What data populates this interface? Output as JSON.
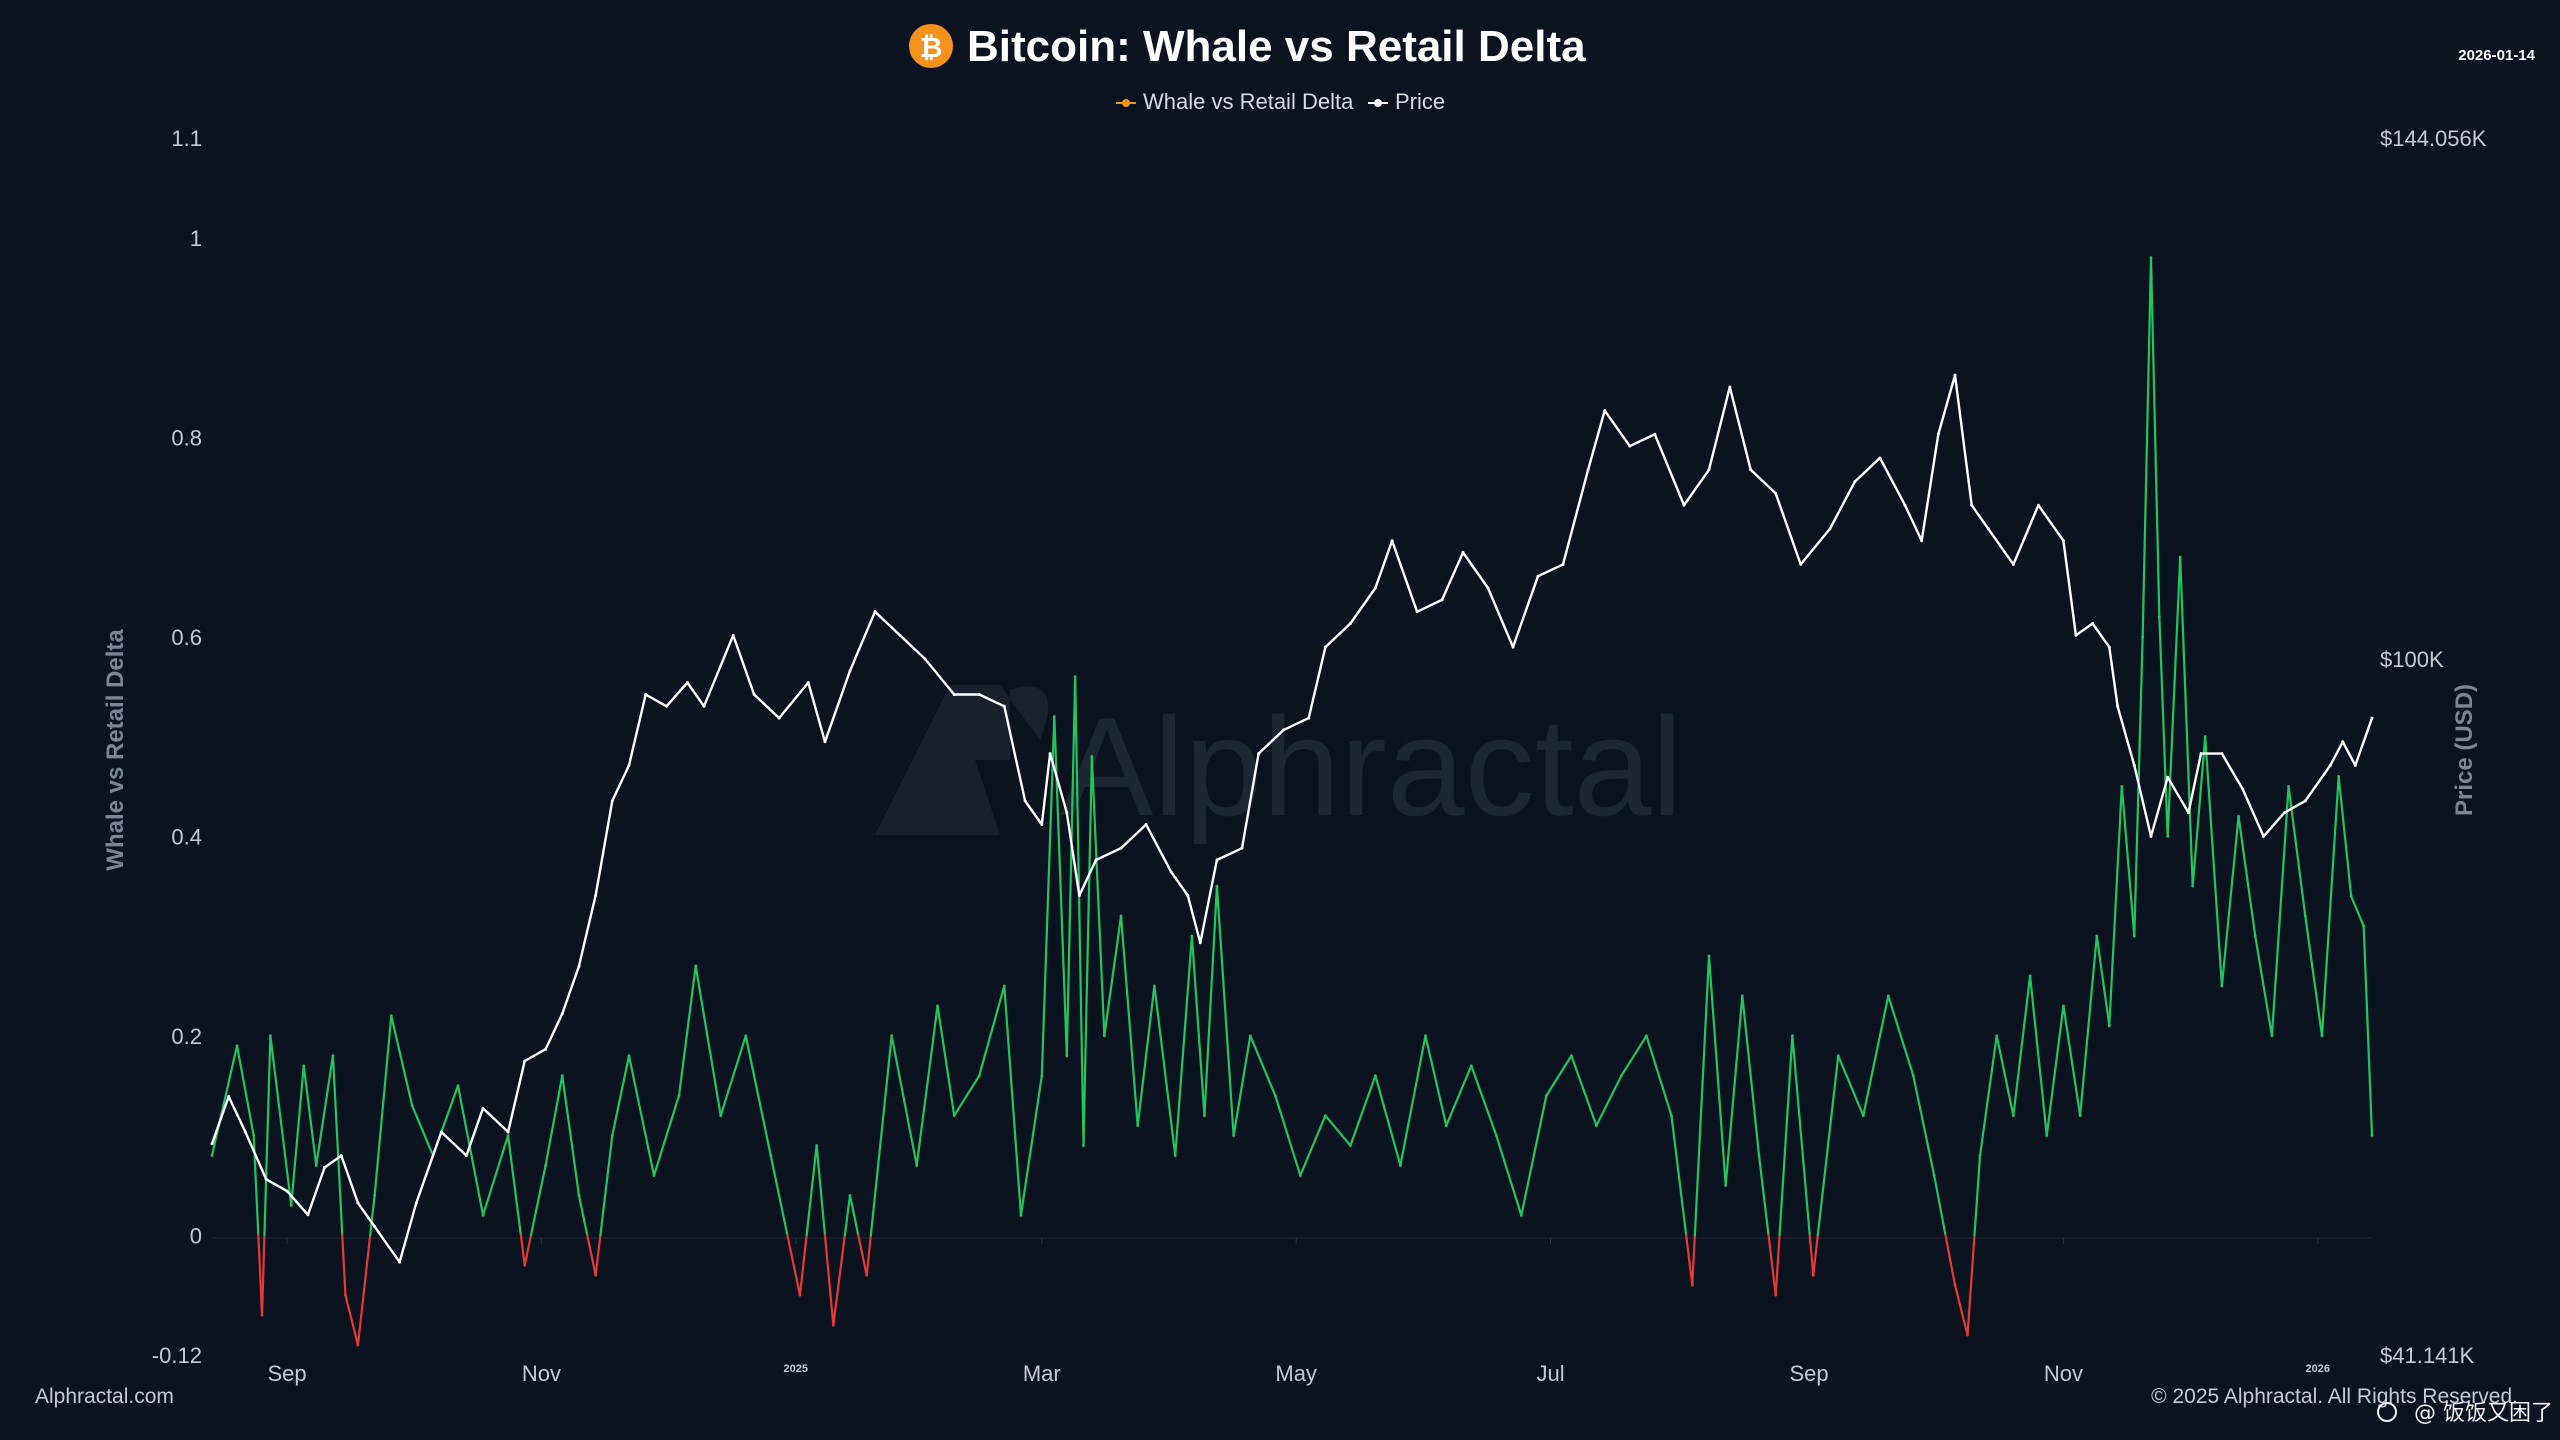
{
  "header": {
    "title": "Bitcoin: Whale vs Retail Delta",
    "date": "2026-01-14",
    "icon": "bitcoin-logo-icon"
  },
  "legend": {
    "items": [
      {
        "label": "Whale vs Retail Delta",
        "color": "#f5921b"
      },
      {
        "label": "Price",
        "color": "#ffffff"
      }
    ]
  },
  "colors": {
    "background": "#0b1320",
    "positive_delta": "#22c55e",
    "negative_delta": "#e53935",
    "price_line": "#ffffff",
    "bitcoin_orange": "#f5921b"
  },
  "watermark": "Alphractal",
  "footer": {
    "left": "Alphractal.com",
    "right": "© 2025 Alphractal. All Rights Reserved.",
    "weibo": "@ 饭饭又困了"
  },
  "chart_data": {
    "type": "line",
    "title": "Bitcoin: Whale vs Retail Delta",
    "date_range": [
      "2024-08-14",
      "2026-01-14"
    ],
    "x_tick_labels": [
      "Sep",
      "Nov",
      "2025",
      "Mar",
      "May",
      "Jul",
      "Sep",
      "Nov",
      "2026"
    ],
    "left_axis": {
      "label": "Whale vs Retail Delta",
      "ylim": [
        -0.12,
        1.1
      ],
      "tick_labels": [
        "1.1",
        "1",
        "0.8",
        "0.6",
        "0.4",
        "0.2",
        "0",
        "-0.12"
      ]
    },
    "right_axis": {
      "label": "Price (USD)",
      "ylim": [
        41141,
        144056
      ],
      "tick_labels": [
        "$144.056K",
        "$100K",
        "$41.141K"
      ]
    },
    "grid": false,
    "legend_position": "top-center",
    "series": [
      {
        "name": "Whale vs Retail Delta",
        "axis": "left",
        "style": "green above 0, red below 0",
        "points": [
          [
            "2024-08-14",
            0.08
          ],
          [
            "2024-08-20",
            0.19
          ],
          [
            "2024-08-24",
            0.1
          ],
          [
            "2024-08-26",
            -0.08
          ],
          [
            "2024-08-28",
            0.2
          ],
          [
            "2024-09-02",
            0.03
          ],
          [
            "2024-09-05",
            0.17
          ],
          [
            "2024-09-08",
            0.07
          ],
          [
            "2024-09-12",
            0.18
          ],
          [
            "2024-09-15",
            -0.06
          ],
          [
            "2024-09-18",
            -0.11
          ],
          [
            "2024-09-22",
            0.04
          ],
          [
            "2024-09-26",
            0.22
          ],
          [
            "2024-10-01",
            0.13
          ],
          [
            "2024-10-06",
            0.08
          ],
          [
            "2024-10-12",
            0.15
          ],
          [
            "2024-10-18",
            0.02
          ],
          [
            "2024-10-24",
            0.1
          ],
          [
            "2024-10-28",
            -0.03
          ],
          [
            "2024-11-02",
            0.07
          ],
          [
            "2024-11-06",
            0.16
          ],
          [
            "2024-11-10",
            0.04
          ],
          [
            "2024-11-14",
            -0.04
          ],
          [
            "2024-11-18",
            0.1
          ],
          [
            "2024-11-22",
            0.18
          ],
          [
            "2024-11-28",
            0.06
          ],
          [
            "2024-12-04",
            0.14
          ],
          [
            "2024-12-08",
            0.27
          ],
          [
            "2024-12-14",
            0.12
          ],
          [
            "2024-12-20",
            0.2
          ],
          [
            "2024-12-26",
            0.08
          ],
          [
            "2025-01-02",
            -0.06
          ],
          [
            "2025-01-06",
            0.09
          ],
          [
            "2025-01-10",
            -0.09
          ],
          [
            "2025-01-14",
            0.04
          ],
          [
            "2025-01-18",
            -0.04
          ],
          [
            "2025-01-24",
            0.2
          ],
          [
            "2025-01-30",
            0.07
          ],
          [
            "2025-02-04",
            0.23
          ],
          [
            "2025-02-08",
            0.12
          ],
          [
            "2025-02-14",
            0.16
          ],
          [
            "2025-02-20",
            0.25
          ],
          [
            "2025-02-24",
            0.02
          ],
          [
            "2025-03-01",
            0.16
          ],
          [
            "2025-03-04",
            0.52
          ],
          [
            "2025-03-07",
            0.18
          ],
          [
            "2025-03-09",
            0.56
          ],
          [
            "2025-03-11",
            0.09
          ],
          [
            "2025-03-13",
            0.48
          ],
          [
            "2025-03-16",
            0.2
          ],
          [
            "2025-03-20",
            0.32
          ],
          [
            "2025-03-24",
            0.11
          ],
          [
            "2025-03-28",
            0.25
          ],
          [
            "2025-04-02",
            0.08
          ],
          [
            "2025-04-06",
            0.3
          ],
          [
            "2025-04-09",
            0.12
          ],
          [
            "2025-04-12",
            0.35
          ],
          [
            "2025-04-16",
            0.1
          ],
          [
            "2025-04-20",
            0.2
          ],
          [
            "2025-04-26",
            0.14
          ],
          [
            "2025-05-02",
            0.06
          ],
          [
            "2025-05-08",
            0.12
          ],
          [
            "2025-05-14",
            0.09
          ],
          [
            "2025-05-20",
            0.16
          ],
          [
            "2025-05-26",
            0.07
          ],
          [
            "2025-06-01",
            0.2
          ],
          [
            "2025-06-06",
            0.11
          ],
          [
            "2025-06-12",
            0.17
          ],
          [
            "2025-06-18",
            0.1
          ],
          [
            "2025-06-24",
            0.02
          ],
          [
            "2025-06-30",
            0.14
          ],
          [
            "2025-07-06",
            0.18
          ],
          [
            "2025-07-12",
            0.11
          ],
          [
            "2025-07-18",
            0.16
          ],
          [
            "2025-07-24",
            0.2
          ],
          [
            "2025-07-30",
            0.12
          ],
          [
            "2025-08-04",
            -0.05
          ],
          [
            "2025-08-08",
            0.28
          ],
          [
            "2025-08-12",
            0.05
          ],
          [
            "2025-08-16",
            0.24
          ],
          [
            "2025-08-20",
            0.08
          ],
          [
            "2025-08-24",
            -0.06
          ],
          [
            "2025-08-28",
            0.2
          ],
          [
            "2025-09-02",
            -0.04
          ],
          [
            "2025-09-08",
            0.18
          ],
          [
            "2025-09-14",
            0.12
          ],
          [
            "2025-09-20",
            0.24
          ],
          [
            "2025-09-26",
            0.16
          ],
          [
            "2025-10-01",
            0.06
          ],
          [
            "2025-10-06",
            -0.05
          ],
          [
            "2025-10-09",
            -0.1
          ],
          [
            "2025-10-12",
            0.08
          ],
          [
            "2025-10-16",
            0.2
          ],
          [
            "2025-10-20",
            0.12
          ],
          [
            "2025-10-24",
            0.26
          ],
          [
            "2025-10-28",
            0.1
          ],
          [
            "2025-11-01",
            0.23
          ],
          [
            "2025-11-05",
            0.12
          ],
          [
            "2025-11-09",
            0.3
          ],
          [
            "2025-11-12",
            0.21
          ],
          [
            "2025-11-15",
            0.45
          ],
          [
            "2025-11-18",
            0.3
          ],
          [
            "2025-11-20",
            0.6
          ],
          [
            "2025-11-22",
            0.98
          ],
          [
            "2025-11-24",
            0.62
          ],
          [
            "2025-11-26",
            0.4
          ],
          [
            "2025-11-29",
            0.68
          ],
          [
            "2025-12-02",
            0.35
          ],
          [
            "2025-12-05",
            0.5
          ],
          [
            "2025-12-09",
            0.25
          ],
          [
            "2025-12-13",
            0.42
          ],
          [
            "2025-12-17",
            0.3
          ],
          [
            "2025-12-21",
            0.2
          ],
          [
            "2025-12-25",
            0.45
          ],
          [
            "2025-12-29",
            0.32
          ],
          [
            "2026-01-02",
            0.2
          ],
          [
            "2026-01-06",
            0.46
          ],
          [
            "2026-01-09",
            0.34
          ],
          [
            "2026-01-12",
            0.31
          ],
          [
            "2026-01-14",
            0.1
          ]
        ]
      },
      {
        "name": "Price",
        "axis": "right",
        "points": [
          [
            "2024-08-14",
            59000
          ],
          [
            "2024-08-18",
            63000
          ],
          [
            "2024-08-22",
            60000
          ],
          [
            "2024-08-27",
            56000
          ],
          [
            "2024-09-01",
            55000
          ],
          [
            "2024-09-06",
            53000
          ],
          [
            "2024-09-10",
            57000
          ],
          [
            "2024-09-14",
            58000
          ],
          [
            "2024-09-18",
            54000
          ],
          [
            "2024-09-22",
            52000
          ],
          [
            "2024-09-28",
            49000
          ],
          [
            "2024-10-02",
            54000
          ],
          [
            "2024-10-08",
            60000
          ],
          [
            "2024-10-14",
            58000
          ],
          [
            "2024-10-18",
            62000
          ],
          [
            "2024-10-24",
            60000
          ],
          [
            "2024-10-28",
            66000
          ],
          [
            "2024-11-02",
            67000
          ],
          [
            "2024-11-06",
            70000
          ],
          [
            "2024-11-10",
            74000
          ],
          [
            "2024-11-14",
            80000
          ],
          [
            "2024-11-18",
            88000
          ],
          [
            "2024-11-22",
            91000
          ],
          [
            "2024-11-26",
            97000
          ],
          [
            "2024-12-01",
            96000
          ],
          [
            "2024-12-06",
            98000
          ],
          [
            "2024-12-10",
            96000
          ],
          [
            "2024-12-17",
            102000
          ],
          [
            "2024-12-22",
            97000
          ],
          [
            "2024-12-28",
            95000
          ],
          [
            "2025-01-04",
            98000
          ],
          [
            "2025-01-08",
            93000
          ],
          [
            "2025-01-14",
            99000
          ],
          [
            "2025-01-20",
            104000
          ],
          [
            "2025-01-26",
            102000
          ],
          [
            "2025-02-01",
            100000
          ],
          [
            "2025-02-08",
            97000
          ],
          [
            "2025-02-14",
            97000
          ],
          [
            "2025-02-20",
            96000
          ],
          [
            "2025-02-25",
            88000
          ],
          [
            "2025-03-01",
            86000
          ],
          [
            "2025-03-03",
            92000
          ],
          [
            "2025-03-07",
            87000
          ],
          [
            "2025-03-10",
            80000
          ],
          [
            "2025-03-14",
            83000
          ],
          [
            "2025-03-20",
            84000
          ],
          [
            "2025-03-26",
            86000
          ],
          [
            "2025-04-01",
            82000
          ],
          [
            "2025-04-05",
            80000
          ],
          [
            "2025-04-08",
            76000
          ],
          [
            "2025-04-12",
            83000
          ],
          [
            "2025-04-18",
            84000
          ],
          [
            "2025-04-22",
            92000
          ],
          [
            "2025-04-28",
            94000
          ],
          [
            "2025-05-04",
            95000
          ],
          [
            "2025-05-08",
            101000
          ],
          [
            "2025-05-14",
            103000
          ],
          [
            "2025-05-20",
            106000
          ],
          [
            "2025-05-24",
            110000
          ],
          [
            "2025-05-30",
            104000
          ],
          [
            "2025-06-05",
            105000
          ],
          [
            "2025-06-10",
            109000
          ],
          [
            "2025-06-16",
            106000
          ],
          [
            "2025-06-22",
            101000
          ],
          [
            "2025-06-28",
            107000
          ],
          [
            "2025-07-04",
            108000
          ],
          [
            "2025-07-10",
            116000
          ],
          [
            "2025-07-14",
            121000
          ],
          [
            "2025-07-20",
            118000
          ],
          [
            "2025-07-26",
            119000
          ],
          [
            "2025-08-02",
            113000
          ],
          [
            "2025-08-08",
            116000
          ],
          [
            "2025-08-13",
            123000
          ],
          [
            "2025-08-18",
            116000
          ],
          [
            "2025-08-24",
            114000
          ],
          [
            "2025-08-30",
            108000
          ],
          [
            "2025-09-06",
            111000
          ],
          [
            "2025-09-12",
            115000
          ],
          [
            "2025-09-18",
            117000
          ],
          [
            "2025-09-24",
            113000
          ],
          [
            "2025-09-28",
            110000
          ],
          [
            "2025-10-02",
            119000
          ],
          [
            "2025-10-06",
            124000
          ],
          [
            "2025-10-10",
            113000
          ],
          [
            "2025-10-14",
            111000
          ],
          [
            "2025-10-20",
            108000
          ],
          [
            "2025-10-26",
            113000
          ],
          [
            "2025-11-01",
            110000
          ],
          [
            "2025-11-04",
            102000
          ],
          [
            "2025-11-08",
            103000
          ],
          [
            "2025-11-12",
            101000
          ],
          [
            "2025-11-14",
            96000
          ],
          [
            "2025-11-18",
            91000
          ],
          [
            "2025-11-22",
            85000
          ],
          [
            "2025-11-26",
            90000
          ],
          [
            "2025-12-01",
            87000
          ],
          [
            "2025-12-04",
            92000
          ],
          [
            "2025-12-09",
            92000
          ],
          [
            "2025-12-14",
            89000
          ],
          [
            "2025-12-19",
            85000
          ],
          [
            "2025-12-24",
            87000
          ],
          [
            "2025-12-29",
            88000
          ],
          [
            "2026-01-04",
            91000
          ],
          [
            "2026-01-07",
            93000
          ],
          [
            "2026-01-10",
            91000
          ],
          [
            "2026-01-14",
            95000
          ]
        ]
      }
    ]
  }
}
